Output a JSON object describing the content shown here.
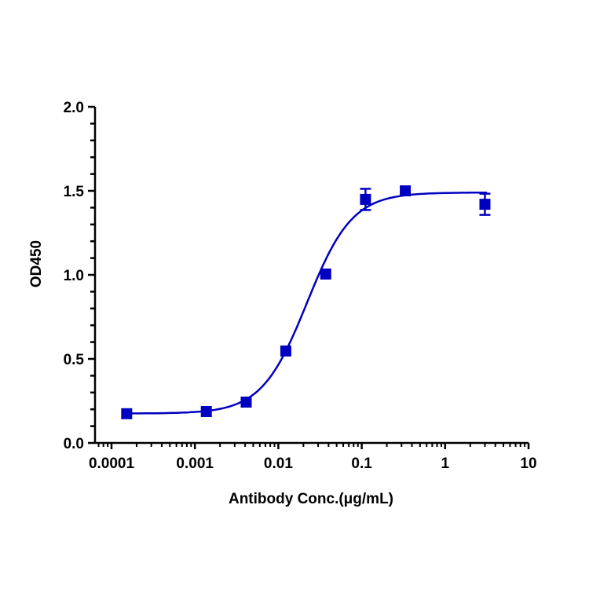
{
  "chart_data": {
    "type": "scatter",
    "title": "",
    "xlabel": "Antibody Conc.(μg/mL)",
    "ylabel": "OD450",
    "xscale": "log",
    "xlim": [
      0.0001,
      10
    ],
    "ylim": [
      0,
      2.0
    ],
    "x_ticks": [
      "0.0001",
      "0.001",
      "0.01",
      "0.1",
      "1",
      "10"
    ],
    "y_ticks": [
      "0.0",
      "0.5",
      "1.0",
      "1.5",
      "2.0"
    ],
    "grid": false,
    "legend": null,
    "color": "#0000C0",
    "series": [
      {
        "name": "OD450",
        "marker": "square",
        "x": [
          0.000152,
          0.00137,
          0.00412,
          0.0123,
          0.037,
          0.111,
          0.333,
          3.0
        ],
        "y": [
          0.174,
          0.187,
          0.243,
          0.547,
          1.005,
          1.449,
          1.5,
          1.42
        ],
        "error": [
          0.01,
          0.01,
          0.01,
          0.01,
          0.01,
          0.063,
          0.01,
          0.063
        ]
      }
    ],
    "fit": {
      "type": "4PL sigmoidal",
      "bottom": 0.175,
      "top": 1.49,
      "ec50": 0.022,
      "hill": 1.6
    }
  }
}
